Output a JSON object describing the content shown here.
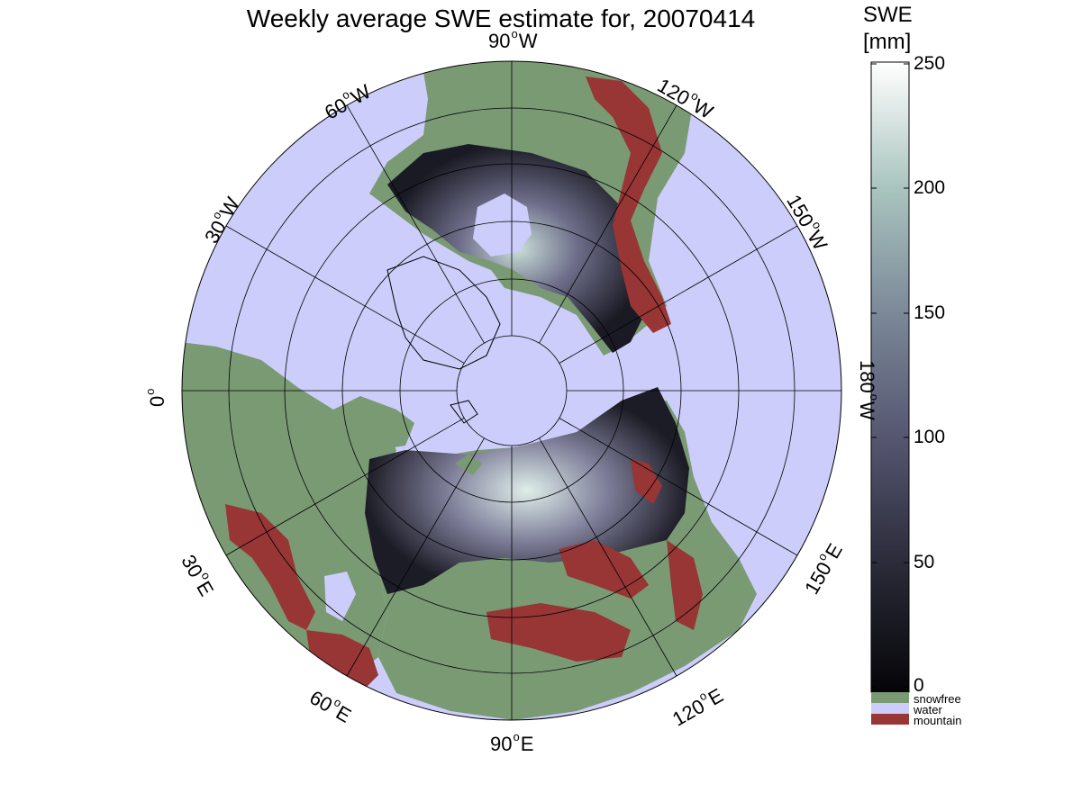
{
  "title": "Weekly average SWE estimate for, 20070414",
  "colorbar": {
    "title_line1": "SWE",
    "title_line2": "[mm]",
    "ticks": [
      "0",
      "50",
      "100",
      "150",
      "200",
      "250"
    ],
    "colors": {
      "low": "#0a0a10",
      "mid": "#55556f",
      "high_mid": "#9fb7b0",
      "top": "#ffffff"
    }
  },
  "categories": [
    {
      "label": "snowfree",
      "color": "#7a9a74"
    },
    {
      "label": "water",
      "color": "#cdcdfb"
    },
    {
      "label": "mountain",
      "color": "#983535"
    }
  ],
  "graticule_labels": [
    {
      "deg": "90",
      "dir": "W"
    },
    {
      "deg": "120",
      "dir": "W"
    },
    {
      "deg": "150",
      "dir": "W"
    },
    {
      "deg": "180",
      "dir": "W"
    },
    {
      "deg": "150",
      "dir": "E"
    },
    {
      "deg": "120",
      "dir": "E"
    },
    {
      "deg": "90",
      "dir": "E"
    },
    {
      "deg": "60",
      "dir": "E"
    },
    {
      "deg": "30",
      "dir": "E"
    },
    {
      "deg": "0",
      "dir": ""
    },
    {
      "deg": "30",
      "dir": "W"
    },
    {
      "deg": "60",
      "dir": "W"
    }
  ],
  "colors": {
    "ocean": "#cdcdfb",
    "land": "#7a9a74",
    "mountain": "#983535",
    "snow_dark": "#22222e",
    "snow_mid": "#5d5d78",
    "snow_light": "#c6dcd6",
    "grid": "#000000"
  }
}
